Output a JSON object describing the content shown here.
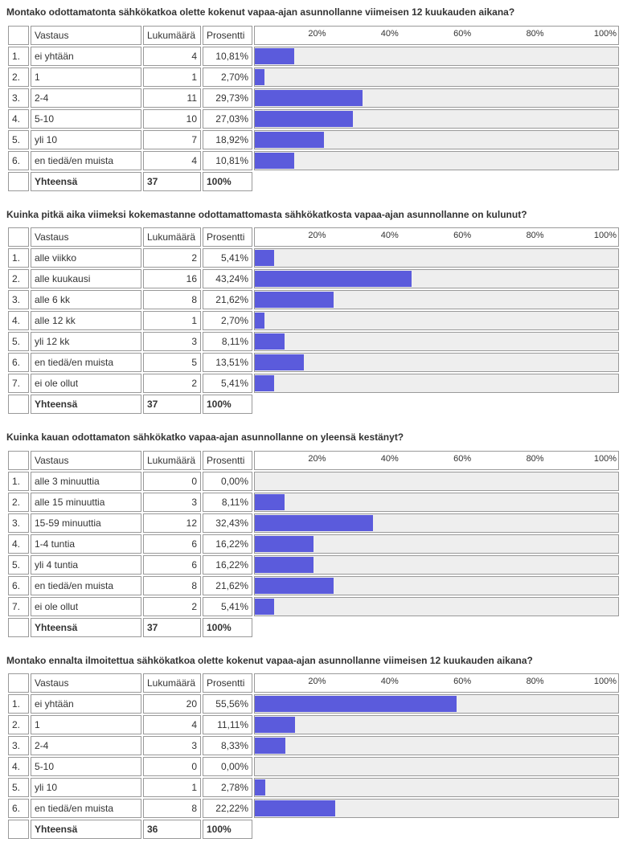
{
  "axis_ticks": [
    20,
    40,
    60,
    80,
    100
  ],
  "axis_tick_labels": [
    "20%",
    "40%",
    "60%",
    "80%",
    "100%"
  ],
  "columns": {
    "answer": "Vastaus",
    "count": "Lukumäärä",
    "percent": "Prosentti"
  },
  "total_label": "Yhteensä",
  "bar_color": "#5b5bdc",
  "bar_bg": "#eeeeee",
  "questions": [
    {
      "title": "Montako odottamatonta sähkökatkoa olette kokenut vapaa-ajan asunnollanne viimeisen 12 kuukauden aikana?",
      "rows": [
        {
          "n": "1.",
          "ans": "ei yhtään",
          "cnt": 4,
          "pct": "10,81%",
          "v": 10.81
        },
        {
          "n": "2.",
          "ans": "1",
          "cnt": 1,
          "pct": "2,70%",
          "v": 2.7
        },
        {
          "n": "3.",
          "ans": "2-4",
          "cnt": 11,
          "pct": "29,73%",
          "v": 29.73
        },
        {
          "n": "4.",
          "ans": "5-10",
          "cnt": 10,
          "pct": "27,03%",
          "v": 27.03
        },
        {
          "n": "5.",
          "ans": "yli 10",
          "cnt": 7,
          "pct": "18,92%",
          "v": 18.92
        },
        {
          "n": "6.",
          "ans": "en tiedä/en muista",
          "cnt": 4,
          "pct": "10,81%",
          "v": 10.81
        }
      ],
      "total_cnt": 37,
      "total_pct": "100%"
    },
    {
      "title": "Kuinka pitkä aika viimeksi kokemastanne odottamattomasta sähkökatkosta vapaa-ajan asunnollanne on kulunut?",
      "rows": [
        {
          "n": "1.",
          "ans": "alle viikko",
          "cnt": 2,
          "pct": "5,41%",
          "v": 5.41
        },
        {
          "n": "2.",
          "ans": "alle kuukausi",
          "cnt": 16,
          "pct": "43,24%",
          "v": 43.24
        },
        {
          "n": "3.",
          "ans": "alle 6 kk",
          "cnt": 8,
          "pct": "21,62%",
          "v": 21.62
        },
        {
          "n": "4.",
          "ans": "alle 12 kk",
          "cnt": 1,
          "pct": "2,70%",
          "v": 2.7
        },
        {
          "n": "5.",
          "ans": "yli 12 kk",
          "cnt": 3,
          "pct": "8,11%",
          "v": 8.11
        },
        {
          "n": "6.",
          "ans": "en tiedä/en muista",
          "cnt": 5,
          "pct": "13,51%",
          "v": 13.51
        },
        {
          "n": "7.",
          "ans": "ei ole ollut",
          "cnt": 2,
          "pct": "5,41%",
          "v": 5.41
        }
      ],
      "total_cnt": 37,
      "total_pct": "100%"
    },
    {
      "title": "Kuinka kauan odottamaton sähkökatko vapaa-ajan asunnollanne on yleensä kestänyt?",
      "rows": [
        {
          "n": "1.",
          "ans": "alle 3 minuuttia",
          "cnt": 0,
          "pct": "0,00%",
          "v": 0.0
        },
        {
          "n": "2.",
          "ans": "alle 15 minuuttia",
          "cnt": 3,
          "pct": "8,11%",
          "v": 8.11
        },
        {
          "n": "3.",
          "ans": "15-59 minuuttia",
          "cnt": 12,
          "pct": "32,43%",
          "v": 32.43
        },
        {
          "n": "4.",
          "ans": "1-4 tuntia",
          "cnt": 6,
          "pct": "16,22%",
          "v": 16.22
        },
        {
          "n": "5.",
          "ans": "yli 4 tuntia",
          "cnt": 6,
          "pct": "16,22%",
          "v": 16.22
        },
        {
          "n": "6.",
          "ans": "en tiedä/en muista",
          "cnt": 8,
          "pct": "21,62%",
          "v": 21.62
        },
        {
          "n": "7.",
          "ans": "ei ole ollut",
          "cnt": 2,
          "pct": "5,41%",
          "v": 5.41
        }
      ],
      "total_cnt": 37,
      "total_pct": "100%"
    },
    {
      "title": "Montako ennalta ilmoitettua sähkökatkoa olette kokenut vapaa-ajan asunnollanne viimeisen 12 kuukauden aikana?",
      "rows": [
        {
          "n": "1.",
          "ans": "ei yhtään",
          "cnt": 20,
          "pct": "55,56%",
          "v": 55.56
        },
        {
          "n": "2.",
          "ans": "1",
          "cnt": 4,
          "pct": "11,11%",
          "v": 11.11
        },
        {
          "n": "3.",
          "ans": "2-4",
          "cnt": 3,
          "pct": "8,33%",
          "v": 8.33
        },
        {
          "n": "4.",
          "ans": "5-10",
          "cnt": 0,
          "pct": "0,00%",
          "v": 0.0
        },
        {
          "n": "5.",
          "ans": "yli 10",
          "cnt": 1,
          "pct": "2,78%",
          "v": 2.78
        },
        {
          "n": "6.",
          "ans": "en tiedä/en muista",
          "cnt": 8,
          "pct": "22,22%",
          "v": 22.22
        }
      ],
      "total_cnt": 36,
      "total_pct": "100%"
    }
  ]
}
